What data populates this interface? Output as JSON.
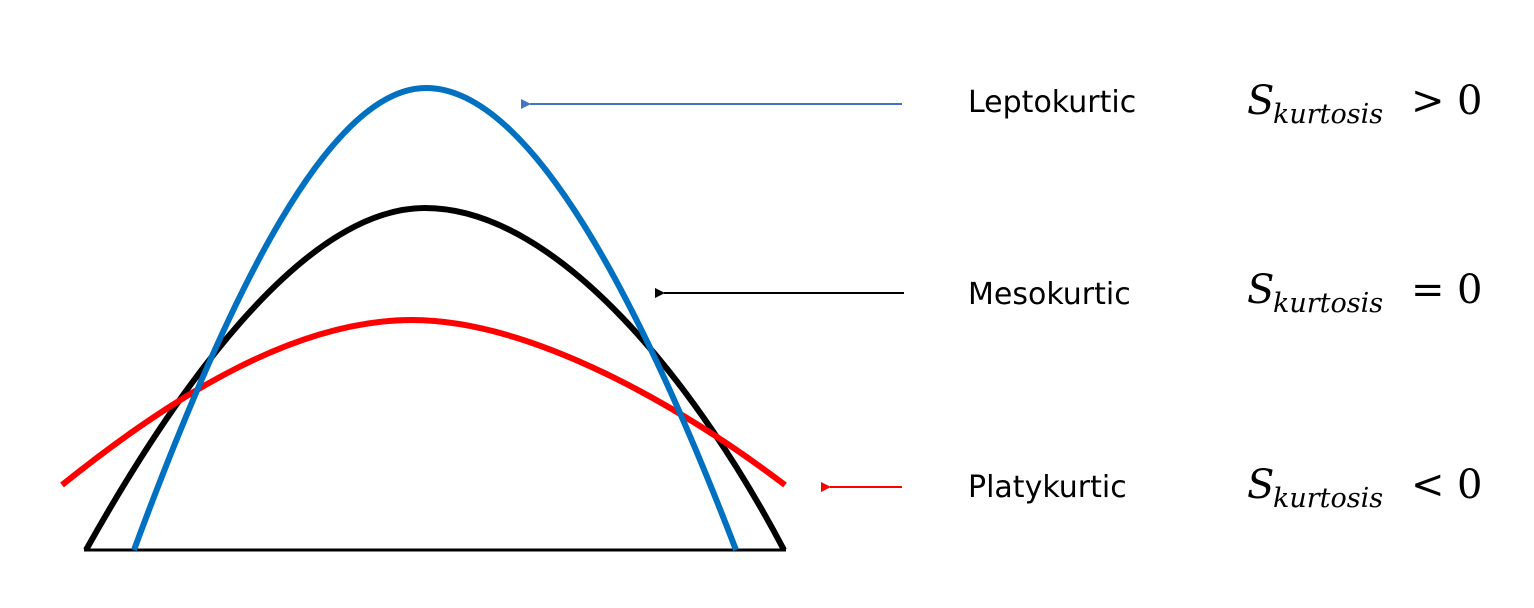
{
  "colors": {
    "leptokurtic": "#0070c0",
    "mesokurtic": "#000000",
    "platykurtic": "#ff0000",
    "lepto_arrow": "#4472c4",
    "meso_arrow": "#000000",
    "platy_arrow": "#ff0000"
  },
  "rows": [
    {
      "id": "leptokurtic",
      "label": "Leptokurtic",
      "symbol": "S",
      "subscript": "kurtosis",
      "operator": ">",
      "value": "0"
    },
    {
      "id": "mesokurtic",
      "label": "Mesokurtic",
      "symbol": "S",
      "subscript": "kurtosis",
      "operator": "=",
      "value": "0"
    },
    {
      "id": "platykurtic",
      "label": "Platykurtic",
      "symbol": "S",
      "subscript": "kurtosis",
      "operator": "<",
      "value": "0"
    }
  ]
}
